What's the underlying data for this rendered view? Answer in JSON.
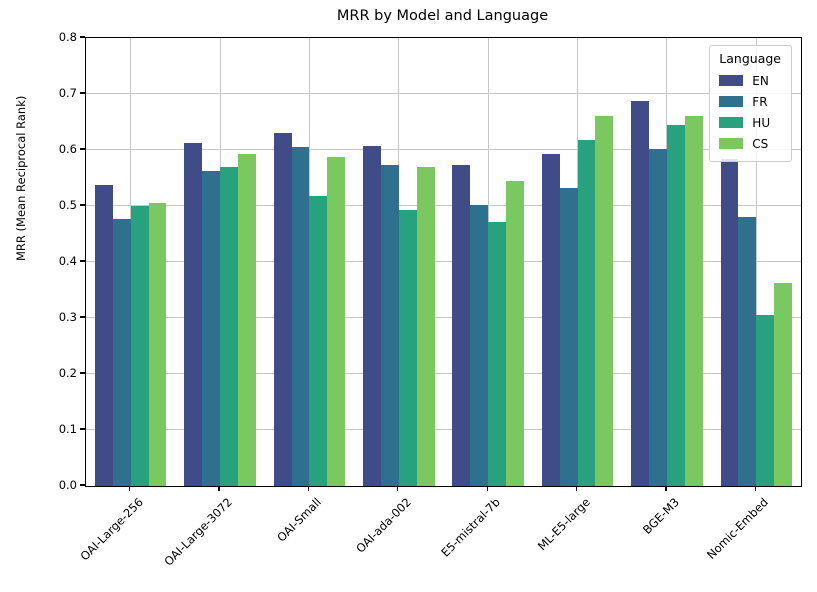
{
  "chart_data": {
    "type": "bar",
    "title": "MRR by Model and Language",
    "xlabel": "",
    "ylabel": "MRR  (Mean Reciprocal Rank)",
    "ylim": [
      0.0,
      0.8
    ],
    "ytick_step": 0.1,
    "grid": true,
    "legend_title": "Language",
    "legend_position": "upper right",
    "categories": [
      "OAI-Large-256",
      "OAI-Large-3072",
      "OAI-Small",
      "OAI-ada-002",
      "E5-mistral-7b",
      "ML-E5-large",
      "BGE-M3",
      "Nomic-Embed"
    ],
    "series": [
      {
        "name": "EN",
        "color": "#3f4c87",
        "values": [
          0.538,
          0.613,
          0.63,
          0.607,
          0.573,
          0.592,
          0.688,
          0.584
        ]
      },
      {
        "name": "FR",
        "color": "#2e708e",
        "values": [
          0.477,
          0.562,
          0.606,
          0.574,
          0.502,
          0.532,
          0.602,
          0.481
        ]
      },
      {
        "name": "HU",
        "color": "#28a17e",
        "values": [
          0.5,
          0.57,
          0.517,
          0.492,
          0.472,
          0.617,
          0.644,
          0.306
        ]
      },
      {
        "name": "CS",
        "color": "#7cc860",
        "values": [
          0.505,
          0.593,
          0.588,
          0.569,
          0.544,
          0.661,
          0.661,
          0.363
        ]
      }
    ]
  }
}
